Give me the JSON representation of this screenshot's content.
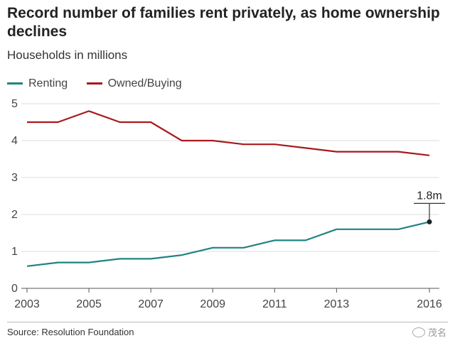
{
  "header": {
    "title": "Record number of families rent privately, as home ownership declines",
    "subtitle": "Households in millions"
  },
  "footer": {
    "source": "Source: Resolution Foundation",
    "watermark": "茂名"
  },
  "chart_data": {
    "type": "line",
    "title": "Record number of families rent privately, as home ownership declines",
    "subtitle": "Households in millions",
    "xlabel": "",
    "ylabel": "",
    "x": [
      2003,
      2004,
      2005,
      2006,
      2007,
      2008,
      2009,
      2010,
      2011,
      2012,
      2013,
      2014,
      2015,
      2016
    ],
    "xticks": [
      "2003",
      "2005",
      "2007",
      "2009",
      "2011",
      "2013",
      "2016"
    ],
    "yticks": [
      "0",
      "1",
      "2",
      "3",
      "4",
      "5"
    ],
    "xlim": [
      2003,
      2016
    ],
    "ylim": [
      0,
      5
    ],
    "grid": true,
    "legend_position": "top-left",
    "series": [
      {
        "name": "Renting",
        "color": "#1f8381",
        "values": [
          0.6,
          0.7,
          0.7,
          0.8,
          0.8,
          0.9,
          1.1,
          1.1,
          1.3,
          1.3,
          1.6,
          1.6,
          1.6,
          1.8
        ]
      },
      {
        "name": "Owned/Buying",
        "color": "#a8191c",
        "values": [
          4.5,
          4.5,
          4.8,
          4.5,
          4.5,
          4.0,
          4.0,
          3.9,
          3.9,
          3.8,
          3.7,
          3.7,
          3.7,
          3.6
        ]
      }
    ],
    "annotations": [
      {
        "text": "1.8m",
        "series": "Renting",
        "x": 2016,
        "y": 1.8
      }
    ]
  }
}
